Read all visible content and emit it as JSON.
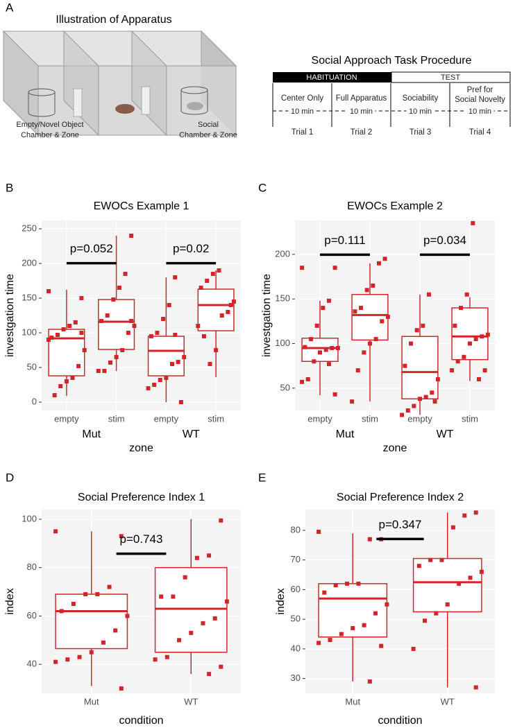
{
  "panel_labels": [
    "A",
    "B",
    "C",
    "D",
    "E"
  ],
  "illustration": {
    "title": "Illustration of Apparatus",
    "left_zone": [
      "Empty/Novel Object",
      "Chamber & Zone"
    ],
    "right_zone": [
      "Social",
      "Chamber & Zone"
    ]
  },
  "procedure": {
    "title": "Social Approach Task Procedure",
    "phases": [
      "HABITUATION",
      "TEST"
    ],
    "steps": [
      {
        "name": [
          "Center Only"
        ],
        "duration": "10 min",
        "trial": "Trial 1"
      },
      {
        "name": [
          "Full Apparatus"
        ],
        "duration": "10 min",
        "trial": "Trial 2"
      },
      {
        "name": [
          "Sociability"
        ],
        "duration": "10 min",
        "trial": "Trial 3"
      },
      {
        "name": [
          "Pref for",
          "Social Novelty"
        ],
        "duration": "10 min",
        "trial": "Trial 4"
      }
    ]
  },
  "chart_data": [
    {
      "type": "box",
      "title": "EWOCs Example 1",
      "xlabel": "zone",
      "ylabel": "investgation time",
      "categories": [
        "empty",
        "stim",
        "empty",
        "stim"
      ],
      "groups": [
        "Mut",
        "WT"
      ],
      "ylim": [
        -12,
        262
      ],
      "yticks": [
        0,
        50,
        100,
        150,
        200,
        250
      ],
      "grid": true,
      "color": "#d0262b",
      "boxes": [
        {
          "q1": 38,
          "median": 92,
          "q3": 105,
          "whisker_low": 9,
          "whisker_high": 162
        },
        {
          "q1": 76,
          "median": 116,
          "q3": 148,
          "whisker_low": 45,
          "whisker_high": 240
        },
        {
          "q1": 38,
          "median": 74,
          "q3": 95,
          "whisker_low": 0,
          "whisker_high": 180
        },
        {
          "q1": 103,
          "median": 140,
          "q3": 163,
          "whisker_low": 36,
          "whisker_high": 190
        }
      ],
      "points": [
        [
          160,
          150,
          115,
          110,
          105,
          97,
          93,
          75,
          52,
          35,
          30,
          23,
          10,
          90,
          100
        ],
        [
          240,
          185,
          165,
          148,
          125,
          117,
          110,
          100,
          75,
          65,
          57,
          45,
          45,
          117
        ],
        [
          180,
          140,
          120,
          100,
          95,
          65,
          58,
          55,
          35,
          32,
          25,
          20,
          0,
          97
        ],
        [
          190,
          185,
          175,
          165,
          145,
          130,
          125,
          75,
          55,
          95,
          110,
          140
        ]
      ],
      "annotations": [
        "p=0.052",
        "p=0.02"
      ]
    },
    {
      "type": "box",
      "title": "EWOCs Example 2",
      "xlabel": "zone",
      "ylabel": "investgation time",
      "categories": [
        "empty",
        "stim",
        "empty",
        "stim"
      ],
      "groups": [
        "Mut",
        "WT"
      ],
      "ylim": [
        25,
        238
      ],
      "yticks": [
        50,
        100,
        150,
        200
      ],
      "grid": true,
      "color": "#d0262b",
      "boxes": [
        {
          "q1": 80,
          "median": 95,
          "q3": 106,
          "whisker_low": 42,
          "whisker_high": 148
        },
        {
          "q1": 104,
          "median": 132,
          "q3": 155,
          "whisker_low": 35,
          "whisker_high": 190
        },
        {
          "q1": 38,
          "median": 68,
          "q3": 108,
          "whisker_low": 20,
          "whisker_high": 155
        },
        {
          "q1": 82,
          "median": 108,
          "q3": 140,
          "whisker_low": 58,
          "whisker_high": 152
        }
      ],
      "points": [
        [
          185,
          185,
          148,
          140,
          120,
          105,
          96,
          95,
          95,
          93,
          90,
          80,
          60,
          57,
          43,
          77
        ],
        [
          195,
          190,
          165,
          160,
          140,
          136,
          130,
          125,
          105,
          100,
          90,
          70,
          35
        ],
        [
          155,
          120,
          115,
          100,
          75,
          60,
          45,
          40,
          38,
          30,
          25,
          20,
          35
        ],
        [
          235,
          155,
          140,
          120,
          110,
          108,
          105,
          100,
          85,
          80,
          70,
          70,
          60
        ]
      ],
      "annotations": [
        "p=0.111",
        "p=0.034"
      ]
    },
    {
      "type": "box",
      "title": "Social Preference Index 1",
      "xlabel": "condition",
      "ylabel": "index",
      "categories": [
        "Mut",
        "WT"
      ],
      "ylim": [
        28,
        104
      ],
      "yticks": [
        40,
        60,
        80,
        100
      ],
      "grid": true,
      "color": "#d0262b",
      "boxes": [
        {
          "q1": 46.5,
          "median": 62,
          "q3": 69,
          "whisker_low": 31,
          "whisker_high": 95
        },
        {
          "q1": 45,
          "median": 63,
          "q3": 80,
          "whisker_low": 36,
          "whisker_high": 100
        }
      ],
      "points": [
        [
          95,
          93,
          72,
          69,
          69,
          65,
          62,
          60,
          54,
          49,
          45,
          43,
          42,
          41,
          30
        ],
        [
          99.5,
          85,
          84,
          76,
          68,
          68,
          66,
          59,
          57,
          53,
          50,
          43,
          42,
          39,
          36
        ]
      ],
      "annotations": [
        "p=0.743"
      ]
    },
    {
      "type": "box",
      "title": "Social Preference Index 2",
      "xlabel": "condition",
      "ylabel": "index",
      "categories": [
        "Mut",
        "WT"
      ],
      "ylim": [
        25,
        87
      ],
      "yticks": [
        30,
        40,
        50,
        60,
        70,
        80
      ],
      "grid": true,
      "color": "#d0262b",
      "boxes": [
        {
          "q1": 44,
          "median": 57,
          "q3": 62,
          "whisker_low": 29,
          "whisker_high": 79
        },
        {
          "q1": 52.5,
          "median": 62.5,
          "q3": 70.5,
          "whisker_low": 27,
          "whisker_high": 86
        }
      ],
      "points": [
        [
          79.5,
          77,
          77,
          62,
          62,
          61.5,
          59,
          55,
          52,
          48,
          47,
          45,
          43,
          42,
          41,
          29
        ],
        [
          86,
          85,
          81,
          70,
          70,
          68,
          66,
          64,
          62,
          55,
          52,
          49.5,
          40,
          27
        ]
      ],
      "annotations": [
        "p=0.347"
      ]
    }
  ]
}
